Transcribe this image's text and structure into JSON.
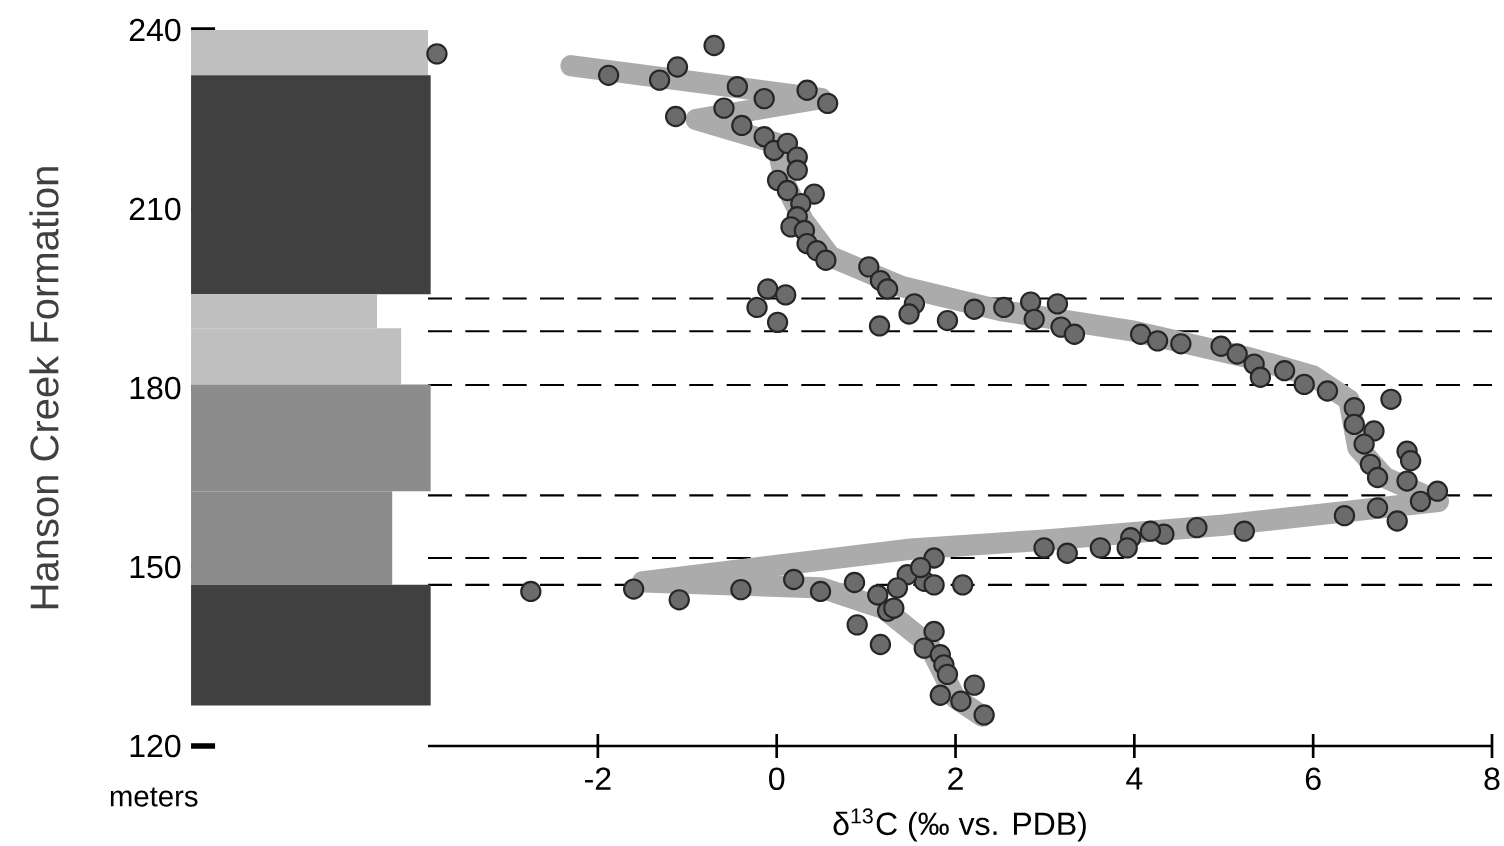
{
  "chart_data": {
    "type": "scatter",
    "xlabel": "δ$^{13}$C (‰ vs. PDB)",
    "ylabel": "Hanson Creek Formation",
    "annotations": [
      "meters"
    ],
    "xlim": [
      -3.9,
      8
    ],
    "ylim": [
      120,
      240
    ],
    "xticks": [
      -2,
      0,
      2,
      4,
      6,
      8
    ],
    "yticks": [
      120,
      150,
      180,
      210,
      240
    ],
    "grid": false,
    "ref_lines": [
      {
        "axis": "y",
        "value": 195,
        "line_style": "dashed",
        "color": "#000000"
      },
      {
        "axis": "y",
        "value": 189.5,
        "line_style": "dashed",
        "color": "#000000"
      },
      {
        "axis": "y",
        "value": 180.5,
        "line_style": "dashed",
        "color": "#000000"
      },
      {
        "axis": "y",
        "value": 162,
        "line_style": "dashed",
        "color": "#000000"
      },
      {
        "axis": "y",
        "value": 151.5,
        "line_style": "dashed",
        "color": "#000000"
      },
      {
        "axis": "y",
        "value": 147,
        "line_style": "dashed",
        "color": "#000000"
      }
    ],
    "series": [
      {
        "type": "line",
        "marker": "none",
        "color": "#ababab",
        "x": [
          -2.3,
          0.5,
          -0.9,
          0.0,
          0.1,
          0.3,
          0.6,
          1.4,
          2.5,
          4.0,
          5.3,
          6.0,
          6.4,
          6.5,
          6.8,
          7.4,
          5.0,
          3.0,
          1.5,
          -1.5,
          0.5,
          1.2,
          1.7,
          2.0,
          2.3
        ],
        "values": [
          234,
          228.5,
          225,
          221,
          214,
          208,
          202,
          197,
          193,
          189.5,
          185,
          182,
          178,
          170,
          165,
          161,
          157,
          154.5,
          153,
          147.5,
          146.5,
          143,
          137,
          128,
          125
        ]
      },
      {
        "marker": "circle",
        "color": "#6b6b6b",
        "x": [
          -3.8,
          -0.7,
          -1.88,
          -1.31,
          -1.11,
          -0.44,
          -0.14,
          0.34,
          0.57,
          -1.13,
          -0.59,
          -0.39,
          -0.14,
          -0.03,
          0.12,
          0.23,
          0.01,
          0.23,
          0.12,
          0.42,
          0.27,
          0.23,
          0.16,
          0.31,
          0.34,
          0.45,
          0.55,
          -0.1,
          0.1,
          -0.22,
          0.01,
          1.03,
          1.16,
          1.24,
          1.15,
          1.54,
          1.48,
          1.91,
          2.21,
          2.54,
          2.84,
          2.88,
          3.14,
          3.18,
          3.33,
          4.07,
          4.26,
          4.52,
          4.97,
          5.15,
          5.34,
          5.41,
          5.68,
          5.9,
          6.16,
          6.46,
          6.87,
          6.46,
          6.68,
          6.57,
          7.05,
          7.09,
          6.64,
          6.72,
          7.05,
          7.39,
          7.2,
          6.72,
          6.94,
          6.35,
          5.23,
          4.7,
          4.33,
          4.18,
          3.96,
          3.92,
          3.62,
          3.25,
          2.99,
          2.08,
          1.76,
          1.65,
          1.46,
          1.35,
          1.24,
          1.16,
          1.76,
          1.65,
          1.83,
          1.87,
          2.21,
          1.83,
          2.06,
          2.32,
          -2.75,
          -1.6,
          -1.09,
          -0.4,
          0.19,
          0.49,
          0.87,
          0.9,
          1.13,
          1.31,
          1.61,
          1.76,
          1.91
        ],
        "values": [
          236.0,
          237.4,
          232.4,
          231.6,
          233.8,
          230.5,
          228.5,
          229.9,
          227.7,
          225.5,
          226.9,
          224.0,
          222.1,
          219.8,
          221.0,
          218.7,
          214.8,
          216.5,
          213.1,
          212.5,
          210.9,
          208.7,
          207.0,
          206.4,
          204.2,
          203.0,
          201.4,
          196.6,
          195.6,
          193.5,
          191.0,
          200.3,
          198.0,
          196.6,
          190.4,
          194.1,
          192.4,
          191.3,
          193.2,
          193.5,
          194.4,
          191.5,
          194.1,
          190.2,
          189.0,
          189.0,
          187.9,
          187.4,
          187.0,
          185.7,
          184.0,
          181.8,
          182.9,
          180.6,
          179.5,
          176.7,
          178.1,
          173.9,
          172.8,
          170.6,
          169.4,
          167.8,
          167.2,
          165.0,
          164.4,
          162.7,
          161.0,
          159.9,
          157.7,
          158.6,
          156.0,
          156.6,
          155.5,
          156.0,
          154.9,
          153.2,
          153.2,
          152.3,
          153.2,
          147.0,
          151.5,
          147.6,
          148.7,
          146.5,
          142.6,
          137.0,
          139.2,
          136.4,
          135.3,
          133.6,
          130.2,
          128.5,
          127.5,
          125.2,
          145.9,
          146.3,
          144.5,
          146.2,
          147.9,
          145.9,
          147.4,
          140.3,
          145.3,
          143.1,
          149.9,
          147.0,
          132.0
        ]
      }
    ]
  }
}
